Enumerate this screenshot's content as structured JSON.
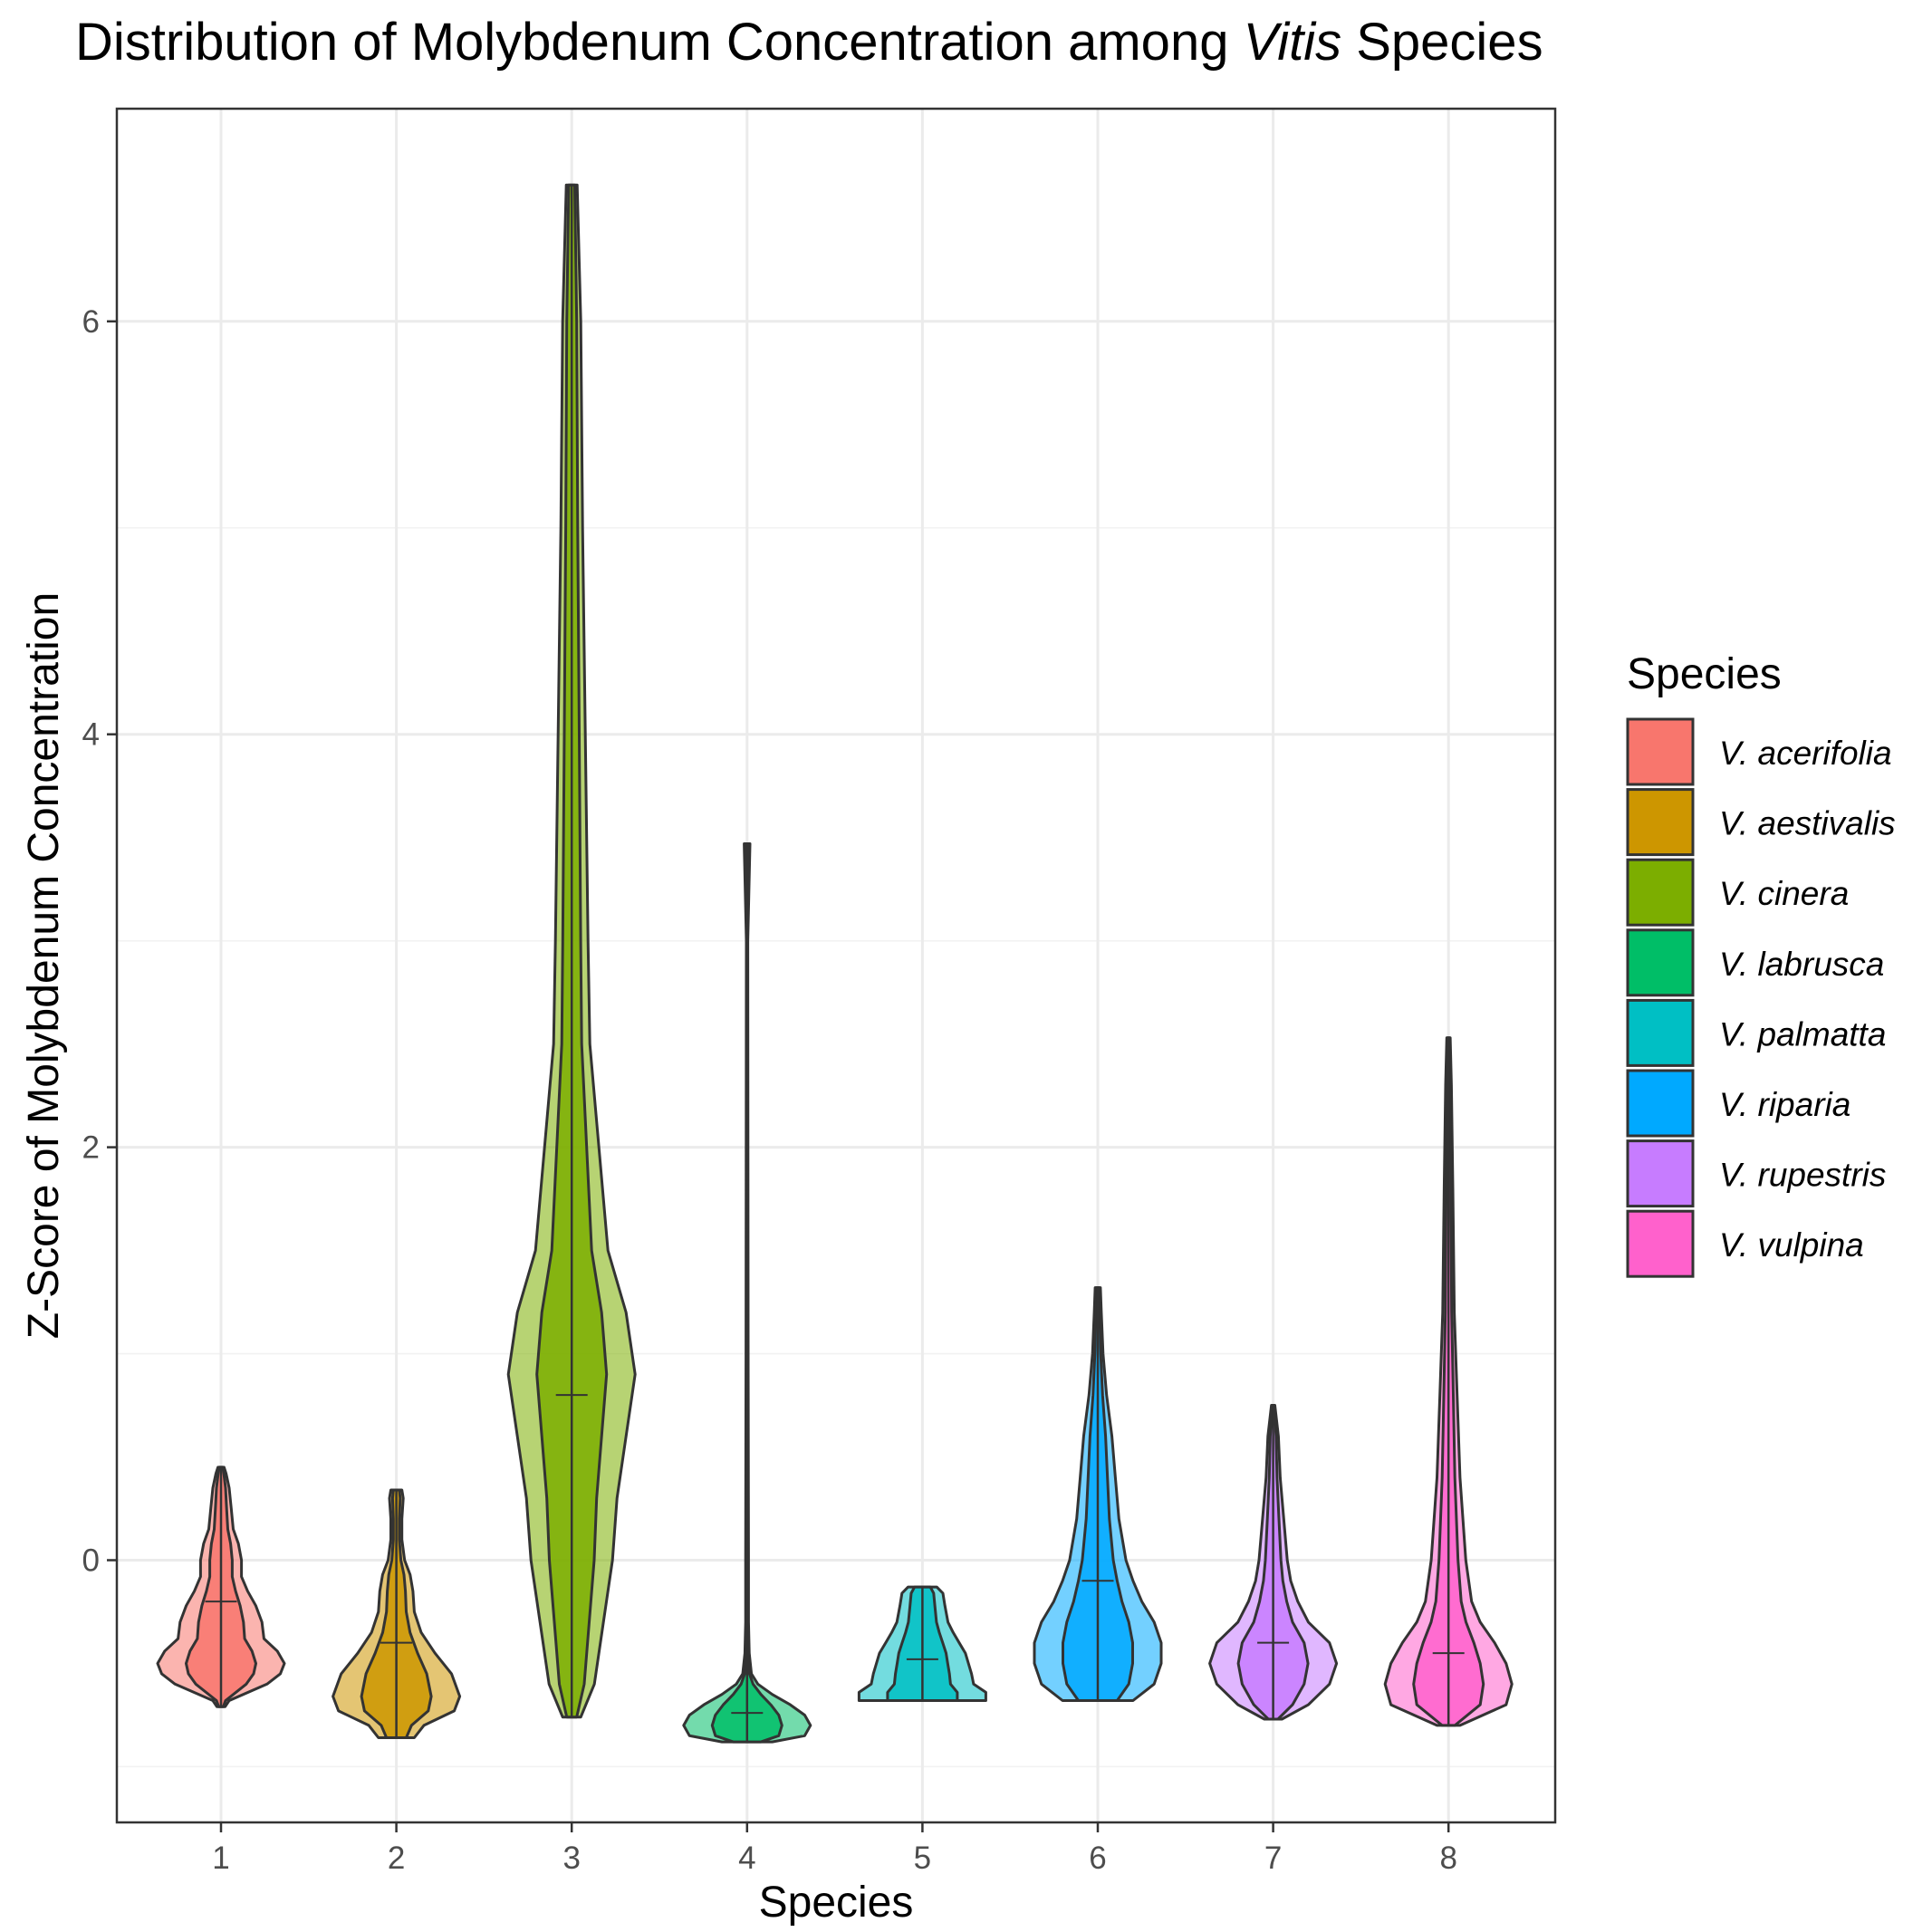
{
  "chart_data": {
    "type": "violin",
    "title_parts": [
      "Distribution of Molybdenum Concentration among ",
      "Vitis",
      " Species"
    ],
    "xlabel": "Species",
    "ylabel": "Z-Score of Molybdenum Concentration",
    "categories": [
      "1",
      "2",
      "3",
      "4",
      "5",
      "6",
      "7",
      "8"
    ],
    "y_ticks": [
      "0",
      "2",
      "4",
      "6"
    ],
    "y_tick_values": [
      0,
      2,
      4,
      6
    ],
    "ylim": [
      -1.27,
      7.03
    ],
    "grid": true,
    "legend": {
      "title": "Species",
      "position": "right",
      "entries": [
        "V. acerifolia",
        "V. aestivalis",
        "V. cinera",
        "V. labrusca",
        "V. palmatta",
        "V. riparia",
        "V. rupestris",
        "V. vulpina"
      ]
    },
    "colors": [
      "#F8766D",
      "#CD9600",
      "#7CAE00",
      "#00BE67",
      "#00BFC4",
      "#00A9FF",
      "#C77CFF",
      "#FF61CC"
    ],
    "series": [
      {
        "category": "1",
        "min": -0.71,
        "max": 0.45,
        "q1": -0.58,
        "median": -0.2,
        "q3": 0.08,
        "profile": [
          [
            -0.71,
            0.04
          ],
          [
            -0.68,
            0.08
          ],
          [
            -0.6,
            0.45
          ],
          [
            -0.55,
            0.58
          ],
          [
            -0.5,
            0.62
          ],
          [
            -0.44,
            0.55
          ],
          [
            -0.38,
            0.42
          ],
          [
            -0.3,
            0.4
          ],
          [
            -0.22,
            0.34
          ],
          [
            -0.15,
            0.26
          ],
          [
            -0.08,
            0.2
          ],
          [
            0.0,
            0.2
          ],
          [
            0.08,
            0.17
          ],
          [
            0.15,
            0.12
          ],
          [
            0.25,
            0.1
          ],
          [
            0.35,
            0.08
          ],
          [
            0.42,
            0.05
          ],
          [
            0.45,
            0.03
          ]
        ]
      },
      {
        "category": "2",
        "min": -0.86,
        "max": 0.34,
        "q1": -0.75,
        "median": -0.4,
        "q3": -0.07,
        "profile": [
          [
            -0.86,
            0.13
          ],
          [
            -0.8,
            0.2
          ],
          [
            -0.73,
            0.42
          ],
          [
            -0.66,
            0.46
          ],
          [
            -0.55,
            0.4
          ],
          [
            -0.45,
            0.28
          ],
          [
            -0.35,
            0.18
          ],
          [
            -0.25,
            0.13
          ],
          [
            -0.15,
            0.12
          ],
          [
            -0.07,
            0.1
          ],
          [
            0.0,
            0.06
          ],
          [
            0.1,
            0.04
          ],
          [
            0.2,
            0.04
          ],
          [
            0.3,
            0.05
          ],
          [
            0.34,
            0.04
          ]
        ]
      },
      {
        "category": "3",
        "min": -0.76,
        "max": 6.66,
        "q1": 0.4,
        "median": 0.8,
        "q3": 1.2,
        "profile": [
          [
            -0.76,
            0.01
          ],
          [
            -0.6,
            0.025
          ],
          [
            -0.3,
            0.035
          ],
          [
            0.0,
            0.045
          ],
          [
            0.3,
            0.05
          ],
          [
            0.6,
            0.06
          ],
          [
            0.9,
            0.07
          ],
          [
            1.2,
            0.06
          ],
          [
            1.5,
            0.04
          ],
          [
            2.0,
            0.03
          ],
          [
            2.5,
            0.02
          ],
          [
            3.0,
            0.018
          ],
          [
            4.0,
            0.015
          ],
          [
            5.0,
            0.012
          ],
          [
            6.0,
            0.01
          ],
          [
            6.66,
            0.006
          ]
        ]
      },
      {
        "category": "4",
        "min": -0.88,
        "max": 3.47,
        "q1": -0.82,
        "median": -0.74,
        "q3": -0.55,
        "profile": [
          [
            -0.88,
            0.35
          ],
          [
            -0.85,
            0.8
          ],
          [
            -0.8,
            0.88
          ],
          [
            -0.75,
            0.8
          ],
          [
            -0.7,
            0.6
          ],
          [
            -0.65,
            0.35
          ],
          [
            -0.6,
            0.15
          ],
          [
            -0.55,
            0.06
          ],
          [
            -0.45,
            0.03
          ],
          [
            -0.3,
            0.02
          ],
          [
            0.0,
            0.02
          ],
          [
            1.0,
            0.015
          ],
          [
            2.0,
            0.012
          ],
          [
            3.0,
            0.01
          ],
          [
            3.47,
            0.04
          ]
        ]
      },
      {
        "category": "5",
        "min": -0.68,
        "max": -0.13,
        "q1": -0.62,
        "median": -0.48,
        "q3": -0.2,
        "profile": [
          [
            -0.68,
            0.62
          ],
          [
            -0.64,
            0.62
          ],
          [
            -0.6,
            0.5
          ],
          [
            -0.55,
            0.48
          ],
          [
            -0.5,
            0.45
          ],
          [
            -0.45,
            0.42
          ],
          [
            -0.4,
            0.36
          ],
          [
            -0.35,
            0.3
          ],
          [
            -0.3,
            0.25
          ],
          [
            -0.22,
            0.22
          ],
          [
            -0.16,
            0.2
          ],
          [
            -0.13,
            0.14
          ]
        ]
      },
      {
        "category": "6",
        "min": -0.68,
        "max": 1.32,
        "q1": -0.4,
        "median": -0.1,
        "q3": 0.35,
        "profile": [
          [
            -0.68,
            0.2
          ],
          [
            -0.6,
            0.32
          ],
          [
            -0.5,
            0.36
          ],
          [
            -0.4,
            0.36
          ],
          [
            -0.3,
            0.32
          ],
          [
            -0.2,
            0.25
          ],
          [
            -0.1,
            0.2
          ],
          [
            0.0,
            0.16
          ],
          [
            0.2,
            0.12
          ],
          [
            0.4,
            0.1
          ],
          [
            0.6,
            0.08
          ],
          [
            0.8,
            0.05
          ],
          [
            1.0,
            0.03
          ],
          [
            1.2,
            0.02
          ],
          [
            1.32,
            0.015
          ]
        ]
      },
      {
        "category": "7",
        "min": -0.77,
        "max": 0.75,
        "q1": -0.6,
        "median": -0.4,
        "q3": 0.0,
        "profile": [
          [
            -0.77,
            0.05
          ],
          [
            -0.7,
            0.2
          ],
          [
            -0.6,
            0.32
          ],
          [
            -0.5,
            0.36
          ],
          [
            -0.4,
            0.32
          ],
          [
            -0.3,
            0.2
          ],
          [
            -0.2,
            0.14
          ],
          [
            -0.1,
            0.1
          ],
          [
            0.0,
            0.08
          ],
          [
            0.2,
            0.06
          ],
          [
            0.4,
            0.04
          ],
          [
            0.6,
            0.03
          ],
          [
            0.75,
            0.01
          ]
        ]
      },
      {
        "category": "8",
        "min": -0.8,
        "max": 2.53,
        "q1": -0.68,
        "median": -0.45,
        "q3": 0.15,
        "profile": [
          [
            -0.8,
            0.04
          ],
          [
            -0.7,
            0.2
          ],
          [
            -0.6,
            0.22
          ],
          [
            -0.5,
            0.2
          ],
          [
            -0.4,
            0.16
          ],
          [
            -0.3,
            0.11
          ],
          [
            -0.2,
            0.08
          ],
          [
            0.0,
            0.06
          ],
          [
            0.4,
            0.04
          ],
          [
            0.8,
            0.03
          ],
          [
            1.2,
            0.02
          ],
          [
            1.8,
            0.015
          ],
          [
            2.3,
            0.01
          ],
          [
            2.53,
            0.006
          ]
        ]
      }
    ]
  }
}
